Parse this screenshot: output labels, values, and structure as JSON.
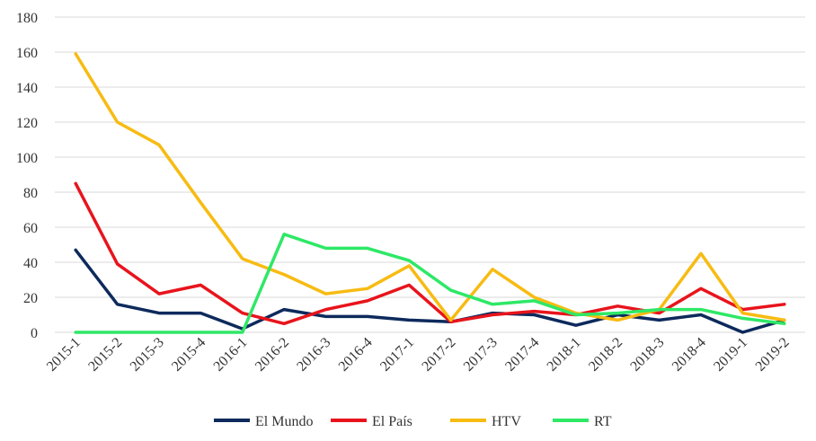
{
  "chart_data": {
    "type": "line",
    "title": "",
    "xlabel": "",
    "ylabel": "",
    "categories": [
      "2015-1",
      "2015-2",
      "2015-3",
      "2015-4",
      "2016-1",
      "2016-2",
      "2016-3",
      "2016-4",
      "2017-1",
      "2017-2",
      "2017-3",
      "2017-4",
      "2018-1",
      "2018-2",
      "2018-3",
      "2018-4",
      "2019-1",
      "2019-2"
    ],
    "ylim": [
      0,
      180
    ],
    "yticks": [
      0,
      20,
      40,
      60,
      80,
      100,
      120,
      140,
      160,
      180
    ],
    "grid": "horizontal",
    "legend_position": "bottom",
    "series": [
      {
        "name": "El Mundo",
        "color": "#0d2a5c",
        "values": [
          47,
          16,
          11,
          11,
          2,
          13,
          9,
          9,
          7,
          6,
          11,
          10,
          4,
          10,
          7,
          10,
          0,
          7
        ]
      },
      {
        "name": "El País",
        "color": "#e8141c",
        "values": [
          85,
          39,
          22,
          27,
          11,
          5,
          13,
          18,
          27,
          6,
          10,
          12,
          10,
          15,
          11,
          25,
          13,
          16
        ]
      },
      {
        "name": "HTV",
        "color": "#f7bb12",
        "values": [
          159,
          120,
          107,
          74,
          42,
          33,
          22,
          25,
          38,
          7,
          36,
          20,
          11,
          7,
          13,
          45,
          11,
          7
        ]
      },
      {
        "name": "RT",
        "color": "#2ee866",
        "values": [
          0,
          0,
          0,
          0,
          0,
          56,
          48,
          48,
          41,
          24,
          16,
          18,
          10,
          11,
          13,
          13,
          8,
          5
        ]
      }
    ]
  }
}
